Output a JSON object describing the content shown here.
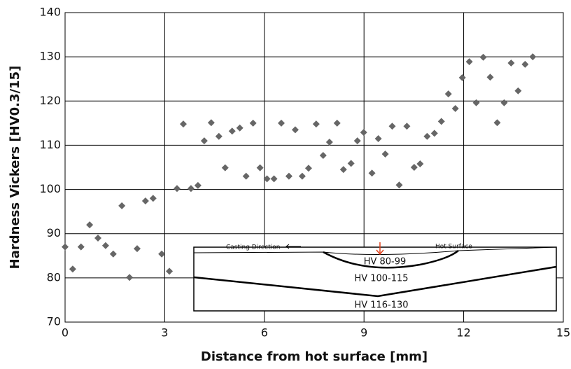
{
  "chart_data": {
    "type": "scatter",
    "x_label": "Distance from hot surface [mm]",
    "y_label": "Hardness Vickers [HV0.3/15]",
    "xlim": [
      0,
      15
    ],
    "xticks": [
      0,
      3,
      6,
      9,
      12,
      15
    ],
    "ylim": [
      70,
      140
    ],
    "yticks": [
      70,
      80,
      90,
      100,
      110,
      120,
      130,
      140
    ],
    "grid": true,
    "color": "#666666",
    "annotations": [
      "Casting Direction",
      "Hot Surface",
      "HV 80-99",
      "HV 100-115",
      "HV 116-130"
    ],
    "x": [
      0,
      0.23,
      0.48,
      0.74,
      0.99,
      1.22,
      1.45,
      1.71,
      1.94,
      2.17,
      2.42,
      2.65,
      2.91,
      3.14,
      3.37,
      3.56,
      3.79,
      4.0,
      4.19,
      4.4,
      4.63,
      4.82,
      5.03,
      5.26,
      5.45,
      5.66,
      5.87,
      6.08,
      6.29,
      6.51,
      6.74,
      6.93,
      7.14,
      7.33,
      7.56,
      7.77,
      7.96,
      8.19,
      8.38,
      8.61,
      8.8,
      8.99,
      9.24,
      9.43,
      9.64,
      9.85,
      10.06,
      10.29,
      10.51,
      10.69,
      10.9,
      11.12,
      11.33,
      11.54,
      11.75,
      11.96,
      12.17,
      12.38,
      12.59,
      12.8,
      13.01,
      13.22,
      13.43,
      13.64,
      13.85,
      14.08
    ],
    "values": [
      87,
      82,
      87,
      92,
      89,
      87.3,
      85.4,
      96.3,
      80.1,
      86.6,
      97.4,
      98,
      85.4,
      81.5,
      100.2,
      114.8,
      100.2,
      100.9,
      111,
      115.1,
      112,
      104.9,
      113.2,
      113.9,
      103,
      115,
      104.9,
      102.4,
      102.4,
      115,
      103,
      113.5,
      103,
      104.8,
      114.8,
      107.7,
      110.7,
      115,
      104.5,
      105.9,
      111,
      112.9,
      103.7,
      111.5,
      108,
      114.3,
      101,
      114.3,
      105,
      105.8,
      112,
      112.7,
      115.4,
      121.6,
      118.3,
      125.3,
      128.9,
      119.6,
      129.9,
      125.4,
      115.1,
      119.6,
      128.6,
      122.3,
      128.3,
      130
    ]
  }
}
